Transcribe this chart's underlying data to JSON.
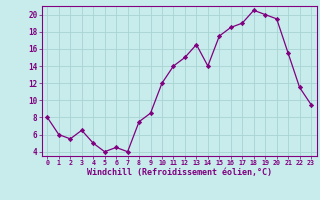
{
  "x": [
    0,
    1,
    2,
    3,
    4,
    5,
    6,
    7,
    8,
    9,
    10,
    11,
    12,
    13,
    14,
    15,
    16,
    17,
    18,
    19,
    20,
    21,
    22,
    23
  ],
  "y": [
    8.0,
    6.0,
    5.5,
    6.5,
    5.0,
    4.0,
    4.5,
    4.0,
    7.5,
    8.5,
    12.0,
    14.0,
    15.0,
    16.5,
    14.0,
    17.5,
    18.5,
    19.0,
    20.5,
    20.0,
    19.5,
    15.5,
    11.5,
    9.5
  ],
  "line_color": "#800080",
  "marker_color": "#800080",
  "bg_color": "#c8ecec",
  "grid_color": "#a8d4d4",
  "xlabel": "Windchill (Refroidissement éolien,°C)",
  "xlabel_color": "#800080",
  "tick_color": "#800080",
  "ylim": [
    3.5,
    21.0
  ],
  "xlim": [
    -0.5,
    23.5
  ],
  "yticks": [
    4,
    6,
    8,
    10,
    12,
    14,
    16,
    18,
    20
  ],
  "xticks": [
    0,
    1,
    2,
    3,
    4,
    5,
    6,
    7,
    8,
    9,
    10,
    11,
    12,
    13,
    14,
    15,
    16,
    17,
    18,
    19,
    20,
    21,
    22,
    23
  ]
}
